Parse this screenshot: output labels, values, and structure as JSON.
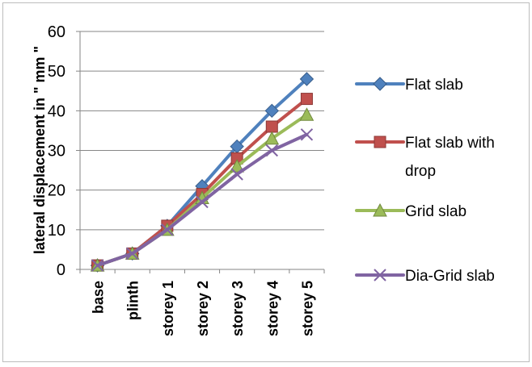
{
  "chart_data": {
    "type": "line",
    "title": "",
    "xlabel": "",
    "ylabel": "lateral displacement in \" mm \"",
    "categories": [
      "base",
      "plinth",
      "storey 1",
      "storey 2",
      "storey 3",
      "storey 4",
      "storey 5"
    ],
    "ylim": [
      0,
      60
    ],
    "yticks": [
      0,
      10,
      20,
      30,
      40,
      50,
      60
    ],
    "grid": "horizontal",
    "legend_position": "right",
    "series": [
      {
        "name": "Flat slab",
        "values": [
          1,
          4,
          11,
          21,
          31,
          40,
          48
        ],
        "color": "#4f81bd",
        "marker": "diamond"
      },
      {
        "name": "Flat slab with drop",
        "values": [
          1,
          4,
          11,
          19,
          28,
          36,
          43
        ],
        "color": "#c0504d",
        "marker": "square"
      },
      {
        "name": "Grid slab",
        "values": [
          1,
          4,
          10,
          18,
          26,
          33,
          39
        ],
        "color": "#9bbb59",
        "marker": "triangle"
      },
      {
        "name": "Dia-Grid slab",
        "values": [
          1,
          4,
          10,
          17,
          24,
          30,
          34
        ],
        "color": "#8064a2",
        "marker": "x"
      }
    ]
  }
}
